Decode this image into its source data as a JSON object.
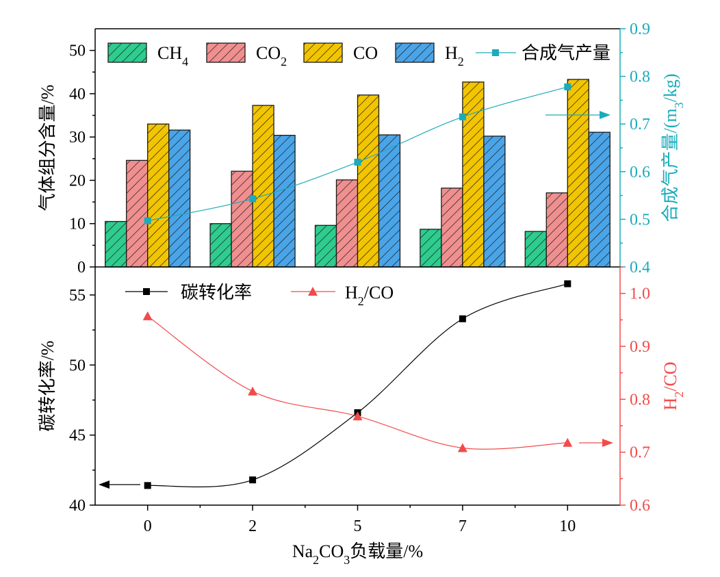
{
  "chart_data": [
    {
      "type": "bar",
      "categories": [
        "0",
        "2",
        "5",
        "7",
        "10"
      ],
      "ylabel": "气体组分含量/%",
      "ylim": [
        0,
        55
      ],
      "yticks": [
        "0",
        "10",
        "20",
        "30",
        "40",
        "50"
      ],
      "series": [
        {
          "name": "CH",
          "sub": "4",
          "color": "#2ecc8e",
          "values": [
            10.5,
            10.0,
            9.6,
            8.7,
            8.2
          ]
        },
        {
          "name": "CO",
          "sub": "2",
          "color": "#f08f8f",
          "values": [
            24.6,
            22.1,
            20.1,
            18.2,
            17.1
          ]
        },
        {
          "name": "CO",
          "sub": "",
          "color": "#f2c500",
          "values": [
            33.0,
            37.3,
            39.7,
            42.7,
            43.3
          ]
        },
        {
          "name": "H",
          "sub": "2",
          "color": "#4aa4e8",
          "values": [
            31.6,
            30.4,
            30.5,
            30.2,
            31.1
          ]
        }
      ],
      "secondary": {
        "type": "line",
        "name": "合成气产量",
        "color": "#1aabbc",
        "ylabel": "合成气产量/(m³/kg)",
        "ylabel_parts": [
          "合成气产量/(m",
          "3",
          "/kg)"
        ],
        "ylim": [
          0.4,
          0.9
        ],
        "yticks": [
          "0.4",
          "0.5",
          "0.6",
          "0.7",
          "0.8",
          "0.9"
        ],
        "values": [
          0.497,
          0.543,
          0.62,
          0.715,
          0.778
        ]
      }
    },
    {
      "type": "line",
      "x": [
        "0",
        "2",
        "5",
        "7",
        "10"
      ],
      "xlabel": "Na₂CO₃负载量/%",
      "xlabel_parts": [
        "Na",
        "2",
        "CO",
        "3",
        "负载量/%"
      ],
      "ylabel": "碳转化率/%",
      "ylim": [
        40,
        57
      ],
      "yticks": [
        "40",
        "45",
        "50",
        "55"
      ],
      "series": [
        {
          "name": "碳转化率",
          "color": "#000000",
          "values": [
            41.4,
            41.8,
            46.6,
            53.3,
            55.8
          ]
        }
      ],
      "secondary": {
        "name": "H₂/CO",
        "name_parts": [
          "H",
          "2",
          "/CO"
        ],
        "color": "#f24b4b",
        "ylabel": "H₂/CO",
        "ylabel_parts": [
          "H",
          "2",
          "/CO"
        ],
        "ylim": [
          0.6,
          1.05
        ],
        "yticks": [
          "0.6",
          "0.7",
          "0.8",
          "0.9",
          "1.0"
        ],
        "values": [
          0.957,
          0.815,
          0.768,
          0.708,
          0.718
        ]
      }
    }
  ]
}
